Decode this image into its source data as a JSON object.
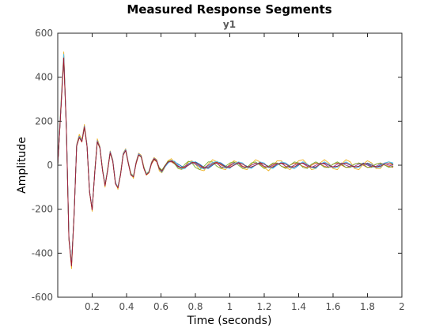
{
  "chart_data": {
    "type": "line",
    "title": "Measured Response Segments",
    "subtitle": "y1",
    "xlabel": "Time (seconds)",
    "ylabel": "Amplitude",
    "xlim": [
      0,
      2
    ],
    "ylim": [
      -600,
      600
    ],
    "xticks": [
      0.2,
      0.4,
      0.6,
      0.8,
      1,
      1.2,
      1.4,
      1.6,
      1.8,
      2
    ],
    "xtick_labels": [
      "0.2",
      "0.4",
      "0.6",
      "0.8",
      "1",
      "1.2",
      "1.4",
      "1.6",
      "1.8",
      "2"
    ],
    "yticks": [
      -600,
      -400,
      -200,
      0,
      200,
      400,
      600
    ],
    "ytick_labels": [
      "-600",
      "-400",
      "-200",
      "0",
      "200",
      "400",
      "600"
    ],
    "grid": false,
    "x": [
      0,
      0.02,
      0.035,
      0.05,
      0.065,
      0.08,
      0.095,
      0.11,
      0.125,
      0.14,
      0.155,
      0.17,
      0.185,
      0.2,
      0.215,
      0.23,
      0.245,
      0.26,
      0.275,
      0.29,
      0.305,
      0.32,
      0.335,
      0.35,
      0.365,
      0.38,
      0.395,
      0.41,
      0.425,
      0.44,
      0.455,
      0.47,
      0.485,
      0.5,
      0.515,
      0.53,
      0.545,
      0.56,
      0.575,
      0.59,
      0.605,
      0.62,
      0.64,
      0.66,
      0.68,
      0.7,
      0.72,
      0.74,
      0.76,
      0.78,
      0.8,
      0.825,
      0.85,
      0.875,
      0.9,
      0.925,
      0.95,
      0.975,
      1,
      1.025,
      1.05,
      1.075,
      1.1,
      1.125,
      1.15,
      1.175,
      1.2,
      1.225,
      1.25,
      1.275,
      1.3,
      1.325,
      1.35,
      1.375,
      1.4,
      1.425,
      1.45,
      1.475,
      1.5,
      1.525,
      1.55,
      1.575,
      1.6,
      1.625,
      1.65,
      1.675,
      1.7,
      1.725,
      1.75,
      1.775,
      1.8,
      1.825,
      1.85,
      1.875,
      1.9,
      1.925,
      1.95
    ],
    "series": [
      {
        "color": "#0072BD",
        "values": [
          0,
          280,
          490,
          170,
          -330,
          -450,
          -220,
          90,
          130,
          110,
          175,
          90,
          -120,
          -200,
          -30,
          110,
          80,
          -20,
          -90,
          -20,
          60,
          20,
          -80,
          -100,
          -40,
          50,
          70,
          10,
          -40,
          -50,
          10,
          50,
          40,
          -10,
          -40,
          -30,
          10,
          30,
          20,
          -15,
          -30,
          -10,
          10,
          20,
          15,
          5,
          -5,
          -10,
          0,
          10,
          15,
          5,
          -10,
          -15,
          0,
          15,
          10,
          -5,
          -10,
          0,
          10,
          5,
          -5,
          -10,
          0,
          10,
          5,
          -5,
          -10,
          0,
          10,
          10,
          -5,
          -15,
          0,
          15,
          5,
          -10,
          -10,
          5,
          10,
          0,
          -10,
          -5,
          5,
          10,
          0,
          -10,
          -5,
          10,
          5,
          -5,
          -10,
          0,
          10,
          15,
          5
        ]
      },
      {
        "color": "#D95319",
        "values": [
          0,
          270,
          480,
          160,
          -340,
          -460,
          -215,
          85,
          125,
          105,
          170,
          85,
          -125,
          -205,
          -35,
          105,
          78,
          -25,
          -95,
          -25,
          55,
          18,
          -85,
          -105,
          -45,
          45,
          68,
          8,
          -45,
          -55,
          5,
          45,
          38,
          -15,
          -45,
          -35,
          5,
          25,
          15,
          -20,
          -25,
          -5,
          15,
          15,
          5,
          -5,
          -15,
          -10,
          5,
          15,
          10,
          -5,
          -15,
          -5,
          10,
          15,
          0,
          -10,
          -5,
          10,
          10,
          -5,
          -10,
          0,
          10,
          5,
          -10,
          -5,
          5,
          10,
          -5,
          -10,
          0,
          10,
          5,
          -5,
          -10,
          0,
          10,
          5,
          -5,
          -10,
          5,
          10,
          0,
          -10,
          -5,
          5,
          10,
          0,
          -10,
          -5,
          5,
          10,
          0,
          -5,
          -10
        ]
      },
      {
        "color": "#EDB120",
        "values": [
          0,
          300,
          515,
          180,
          -320,
          -470,
          -230,
          95,
          140,
          115,
          185,
          95,
          -115,
          -210,
          -25,
          120,
          85,
          -15,
          -100,
          -15,
          65,
          25,
          -75,
          -110,
          -35,
          55,
          75,
          15,
          -35,
          -60,
          15,
          55,
          45,
          -5,
          -45,
          -35,
          15,
          35,
          25,
          -25,
          -35,
          -15,
          20,
          30,
          10,
          -15,
          -20,
          -5,
          15,
          20,
          5,
          -20,
          -25,
          5,
          25,
          15,
          -15,
          -20,
          5,
          20,
          10,
          -15,
          -20,
          5,
          25,
          15,
          -10,
          -25,
          -5,
          20,
          20,
          -10,
          -20,
          0,
          20,
          25,
          5,
          -20,
          -15,
          10,
          25,
          10,
          -15,
          -20,
          5,
          25,
          15,
          -15,
          -20,
          5,
          20,
          10,
          -15,
          -15,
          10,
          15,
          0
        ]
      },
      {
        "color": "#7E2F8E",
        "values": [
          0,
          275,
          495,
          175,
          -325,
          -455,
          -225,
          92,
          132,
          112,
          178,
          92,
          -118,
          -202,
          -32,
          112,
          82,
          -22,
          -92,
          -22,
          62,
          22,
          -78,
          -102,
          -42,
          52,
          72,
          12,
          -42,
          -52,
          12,
          52,
          42,
          -12,
          -42,
          -32,
          12,
          32,
          22,
          -12,
          -28,
          -8,
          12,
          18,
          8,
          -8,
          -12,
          -5,
          8,
          12,
          5,
          -8,
          -12,
          0,
          12,
          8,
          -8,
          -12,
          0,
          12,
          8,
          -8,
          -10,
          0,
          8,
          8,
          -5,
          -10,
          0,
          8,
          8,
          -5,
          -10,
          0,
          10,
          8,
          -5,
          -10,
          0,
          10,
          5,
          -8,
          -8,
          5,
          10,
          0,
          -8,
          -5,
          5,
          8,
          0,
          -8,
          -5,
          5,
          8,
          0,
          -5
        ]
      },
      {
        "color": "#77AC30",
        "values": [
          0,
          285,
          500,
          165,
          -335,
          -445,
          -218,
          88,
          128,
          108,
          172,
          88,
          -122,
          -198,
          -28,
          108,
          76,
          -18,
          -88,
          -18,
          58,
          16,
          -82,
          -98,
          -38,
          48,
          66,
          6,
          -38,
          -48,
          8,
          48,
          36,
          -8,
          -38,
          -28,
          8,
          28,
          18,
          -10,
          -22,
          -5,
          18,
          22,
          5,
          -15,
          -15,
          5,
          18,
          10,
          -10,
          -20,
          -5,
          15,
          15,
          -5,
          -15,
          -5,
          10,
          15,
          0,
          -15,
          -10,
          10,
          15,
          0,
          -15,
          -5,
          10,
          10,
          -5,
          -15,
          0,
          15,
          10,
          -10,
          -15,
          5,
          15,
          5,
          -10,
          -10,
          5,
          15,
          5,
          -10,
          -10,
          5,
          10,
          5,
          -10,
          -10,
          5,
          10,
          0,
          -10,
          -5
        ]
      },
      {
        "color": "#4DBEEE",
        "values": [
          0,
          290,
          505,
          172,
          -328,
          -452,
          -222,
          91,
          131,
          111,
          176,
          91,
          -119,
          -201,
          -31,
          111,
          81,
          -21,
          -91,
          -21,
          61,
          21,
          -79,
          -101,
          -41,
          51,
          71,
          11,
          -41,
          -51,
          11,
          51,
          41,
          -11,
          -41,
          -31,
          11,
          31,
          21,
          -18,
          -32,
          -12,
          8,
          22,
          18,
          0,
          -18,
          -15,
          5,
          18,
          12,
          -10,
          -18,
          -5,
          12,
          18,
          5,
          -12,
          -15,
          5,
          15,
          10,
          -10,
          -15,
          0,
          15,
          10,
          -10,
          -15,
          0,
          15,
          10,
          -10,
          -15,
          5,
          15,
          5,
          -10,
          -15,
          5,
          15,
          5,
          -10,
          -10,
          5,
          15,
          5,
          -10,
          -10,
          5,
          10,
          5,
          -10,
          -10,
          10,
          15,
          10
        ]
      },
      {
        "color": "#A2142F",
        "values": [
          0,
          278,
          488,
          168,
          -332,
          -458,
          -224,
          87,
          127,
          107,
          173,
          87,
          -121,
          -203,
          -33,
          107,
          79,
          -23,
          -93,
          -23,
          57,
          17,
          -83,
          -103,
          -43,
          47,
          67,
          9,
          -43,
          -53,
          9,
          47,
          39,
          -13,
          -43,
          -33,
          9,
          29,
          19,
          -16,
          -28,
          -8,
          14,
          20,
          10,
          -5,
          -10,
          -10,
          0,
          12,
          12,
          0,
          -12,
          -10,
          5,
          12,
          5,
          -8,
          -10,
          0,
          12,
          5,
          -8,
          -8,
          0,
          12,
          5,
          -8,
          -8,
          5,
          10,
          5,
          -8,
          -8,
          5,
          10,
          0,
          -8,
          -8,
          5,
          10,
          0,
          -8,
          -5,
          5,
          10,
          0,
          -8,
          -5,
          5,
          8,
          0,
          -8,
          -5,
          5,
          8,
          0
        ]
      }
    ]
  }
}
